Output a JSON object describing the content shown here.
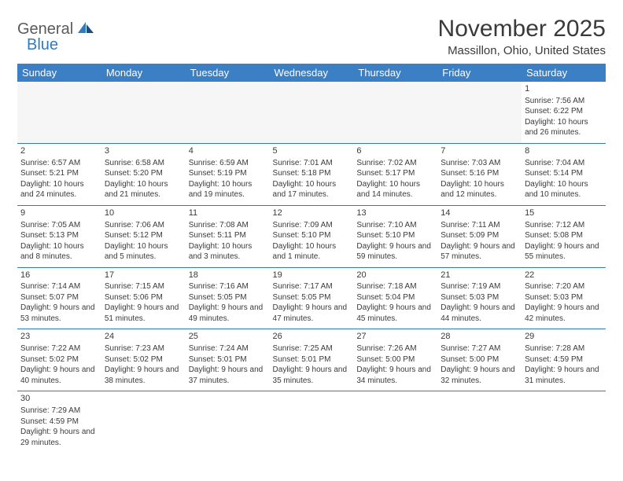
{
  "brand": {
    "name_part1": "General",
    "name_part2": "Blue"
  },
  "title": "November 2025",
  "location": "Massillon, Ohio, United States",
  "colors": {
    "header_bg": "#3b7fc4",
    "header_text": "#ffffff",
    "border": "#2f7bbf",
    "text": "#3a3a3a",
    "empty_bg": "#f6f6f6",
    "logo_gray": "#5a5a5a",
    "logo_blue": "#2f7bbf"
  },
  "weekdays": [
    "Sunday",
    "Monday",
    "Tuesday",
    "Wednesday",
    "Thursday",
    "Friday",
    "Saturday"
  ],
  "weeks": [
    [
      null,
      null,
      null,
      null,
      null,
      null,
      {
        "day": "1",
        "sunrise": "Sunrise: 7:56 AM",
        "sunset": "Sunset: 6:22 PM",
        "daylight": "Daylight: 10 hours and 26 minutes."
      }
    ],
    [
      {
        "day": "2",
        "sunrise": "Sunrise: 6:57 AM",
        "sunset": "Sunset: 5:21 PM",
        "daylight": "Daylight: 10 hours and 24 minutes."
      },
      {
        "day": "3",
        "sunrise": "Sunrise: 6:58 AM",
        "sunset": "Sunset: 5:20 PM",
        "daylight": "Daylight: 10 hours and 21 minutes."
      },
      {
        "day": "4",
        "sunrise": "Sunrise: 6:59 AM",
        "sunset": "Sunset: 5:19 PM",
        "daylight": "Daylight: 10 hours and 19 minutes."
      },
      {
        "day": "5",
        "sunrise": "Sunrise: 7:01 AM",
        "sunset": "Sunset: 5:18 PM",
        "daylight": "Daylight: 10 hours and 17 minutes."
      },
      {
        "day": "6",
        "sunrise": "Sunrise: 7:02 AM",
        "sunset": "Sunset: 5:17 PM",
        "daylight": "Daylight: 10 hours and 14 minutes."
      },
      {
        "day": "7",
        "sunrise": "Sunrise: 7:03 AM",
        "sunset": "Sunset: 5:16 PM",
        "daylight": "Daylight: 10 hours and 12 minutes."
      },
      {
        "day": "8",
        "sunrise": "Sunrise: 7:04 AM",
        "sunset": "Sunset: 5:14 PM",
        "daylight": "Daylight: 10 hours and 10 minutes."
      }
    ],
    [
      {
        "day": "9",
        "sunrise": "Sunrise: 7:05 AM",
        "sunset": "Sunset: 5:13 PM",
        "daylight": "Daylight: 10 hours and 8 minutes."
      },
      {
        "day": "10",
        "sunrise": "Sunrise: 7:06 AM",
        "sunset": "Sunset: 5:12 PM",
        "daylight": "Daylight: 10 hours and 5 minutes."
      },
      {
        "day": "11",
        "sunrise": "Sunrise: 7:08 AM",
        "sunset": "Sunset: 5:11 PM",
        "daylight": "Daylight: 10 hours and 3 minutes."
      },
      {
        "day": "12",
        "sunrise": "Sunrise: 7:09 AM",
        "sunset": "Sunset: 5:10 PM",
        "daylight": "Daylight: 10 hours and 1 minute."
      },
      {
        "day": "13",
        "sunrise": "Sunrise: 7:10 AM",
        "sunset": "Sunset: 5:10 PM",
        "daylight": "Daylight: 9 hours and 59 minutes."
      },
      {
        "day": "14",
        "sunrise": "Sunrise: 7:11 AM",
        "sunset": "Sunset: 5:09 PM",
        "daylight": "Daylight: 9 hours and 57 minutes."
      },
      {
        "day": "15",
        "sunrise": "Sunrise: 7:12 AM",
        "sunset": "Sunset: 5:08 PM",
        "daylight": "Daylight: 9 hours and 55 minutes."
      }
    ],
    [
      {
        "day": "16",
        "sunrise": "Sunrise: 7:14 AM",
        "sunset": "Sunset: 5:07 PM",
        "daylight": "Daylight: 9 hours and 53 minutes."
      },
      {
        "day": "17",
        "sunrise": "Sunrise: 7:15 AM",
        "sunset": "Sunset: 5:06 PM",
        "daylight": "Daylight: 9 hours and 51 minutes."
      },
      {
        "day": "18",
        "sunrise": "Sunrise: 7:16 AM",
        "sunset": "Sunset: 5:05 PM",
        "daylight": "Daylight: 9 hours and 49 minutes."
      },
      {
        "day": "19",
        "sunrise": "Sunrise: 7:17 AM",
        "sunset": "Sunset: 5:05 PM",
        "daylight": "Daylight: 9 hours and 47 minutes."
      },
      {
        "day": "20",
        "sunrise": "Sunrise: 7:18 AM",
        "sunset": "Sunset: 5:04 PM",
        "daylight": "Daylight: 9 hours and 45 minutes."
      },
      {
        "day": "21",
        "sunrise": "Sunrise: 7:19 AM",
        "sunset": "Sunset: 5:03 PM",
        "daylight": "Daylight: 9 hours and 44 minutes."
      },
      {
        "day": "22",
        "sunrise": "Sunrise: 7:20 AM",
        "sunset": "Sunset: 5:03 PM",
        "daylight": "Daylight: 9 hours and 42 minutes."
      }
    ],
    [
      {
        "day": "23",
        "sunrise": "Sunrise: 7:22 AM",
        "sunset": "Sunset: 5:02 PM",
        "daylight": "Daylight: 9 hours and 40 minutes."
      },
      {
        "day": "24",
        "sunrise": "Sunrise: 7:23 AM",
        "sunset": "Sunset: 5:02 PM",
        "daylight": "Daylight: 9 hours and 38 minutes."
      },
      {
        "day": "25",
        "sunrise": "Sunrise: 7:24 AM",
        "sunset": "Sunset: 5:01 PM",
        "daylight": "Daylight: 9 hours and 37 minutes."
      },
      {
        "day": "26",
        "sunrise": "Sunrise: 7:25 AM",
        "sunset": "Sunset: 5:01 PM",
        "daylight": "Daylight: 9 hours and 35 minutes."
      },
      {
        "day": "27",
        "sunrise": "Sunrise: 7:26 AM",
        "sunset": "Sunset: 5:00 PM",
        "daylight": "Daylight: 9 hours and 34 minutes."
      },
      {
        "day": "28",
        "sunrise": "Sunrise: 7:27 AM",
        "sunset": "Sunset: 5:00 PM",
        "daylight": "Daylight: 9 hours and 32 minutes."
      },
      {
        "day": "29",
        "sunrise": "Sunrise: 7:28 AM",
        "sunset": "Sunset: 4:59 PM",
        "daylight": "Daylight: 9 hours and 31 minutes."
      }
    ],
    [
      {
        "day": "30",
        "sunrise": "Sunrise: 7:29 AM",
        "sunset": "Sunset: 4:59 PM",
        "daylight": "Daylight: 9 hours and 29 minutes."
      },
      null,
      null,
      null,
      null,
      null,
      null
    ]
  ]
}
